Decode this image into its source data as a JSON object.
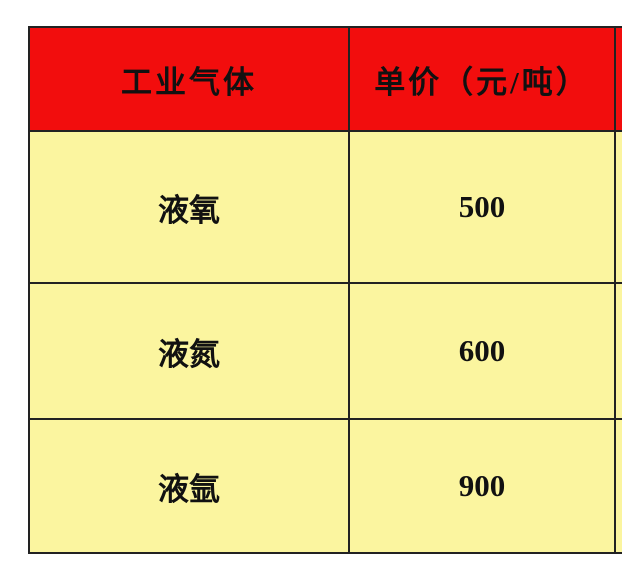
{
  "table": {
    "header": [
      "工业气体",
      "单价（元/吨）"
    ],
    "rows": [
      [
        "液氧",
        500
      ],
      [
        "液氮",
        600
      ],
      [
        "液氩",
        900
      ]
    ]
  }
}
